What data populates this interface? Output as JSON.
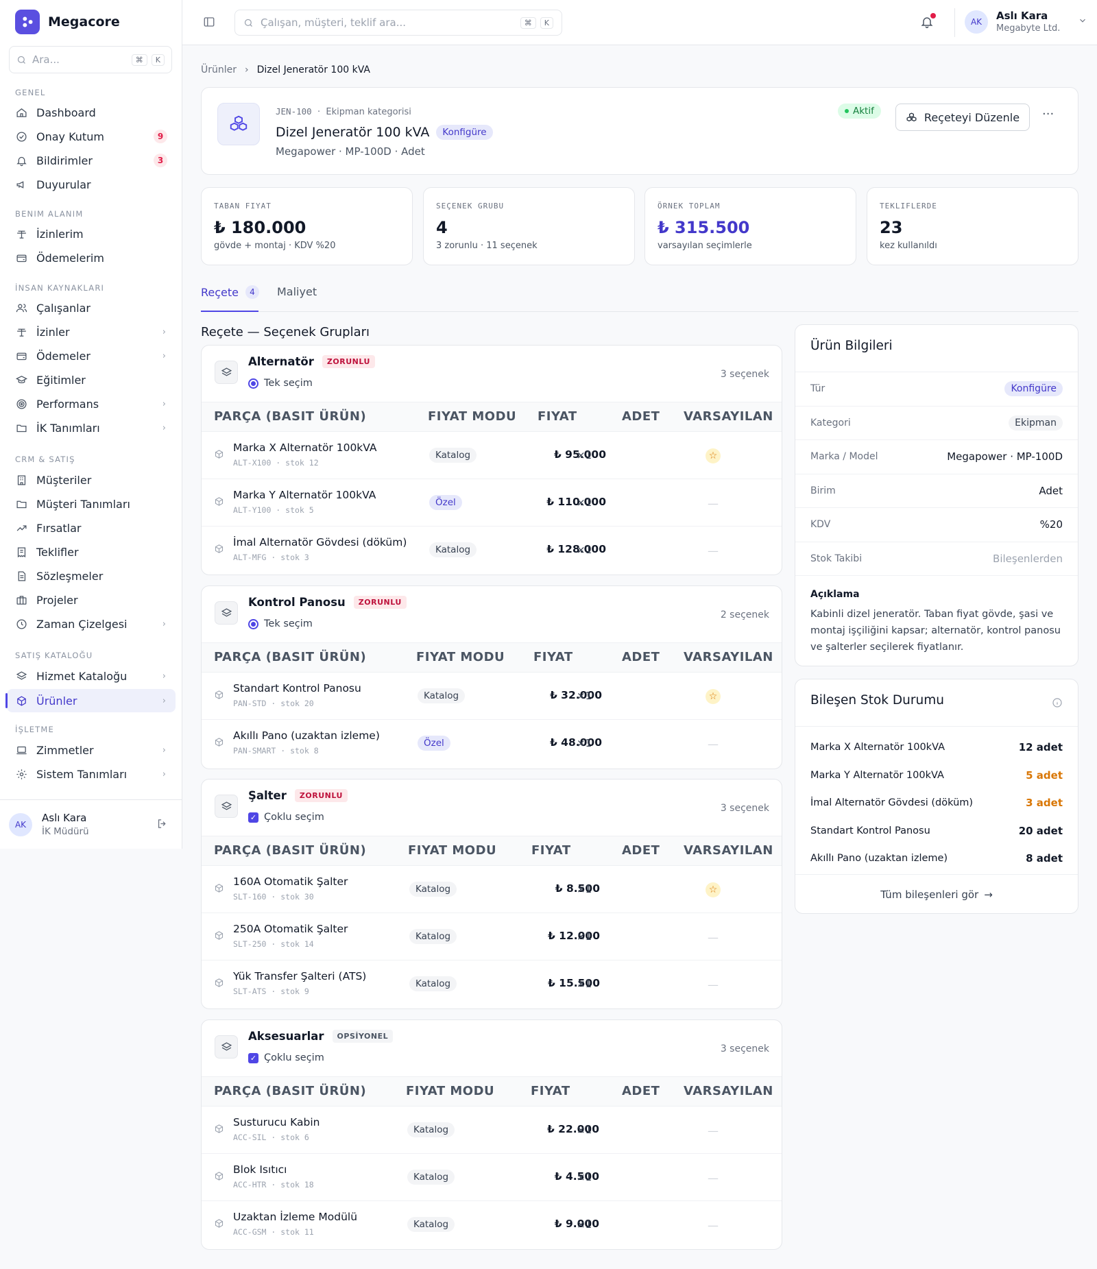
{
  "brand": {
    "name": "Megacore"
  },
  "sidebar": {
    "search_placeholder": "Ara...",
    "kbd1": "⌘",
    "kbd2": "K",
    "sections": {
      "genel": "GENEL",
      "benim": "BENIM ALANIM",
      "ik": "İNSAN KAYNAKLARI",
      "crm": "CRM & SATIŞ",
      "katalog": "SATIŞ KATALOĞU",
      "isletme": "İŞLETME"
    },
    "items": {
      "dashboard": "Dashboard",
      "onay": "Onay Kutum",
      "onay_badge": "9",
      "bildirim": "Bildirimler",
      "bildirim_badge": "3",
      "duyuru": "Duyurular",
      "izinlerim": "İzinlerim",
      "odemelerim": "Ödemelerim",
      "calisanlar": "Çalışanlar",
      "izinler": "İzinler",
      "odemeler": "Ödemeler",
      "egitimler": "Eğitimler",
      "performans": "Performans",
      "ik_tanim": "İK Tanımları",
      "musteriler": "Müşteriler",
      "musteri_tanim": "Müşteri Tanımları",
      "firsatlar": "Fırsatlar",
      "teklifler": "Teklifler",
      "sozlesmeler": "Sözleşmeler",
      "projeler": "Projeler",
      "zaman": "Zaman Çizelgesi",
      "hizmet": "Hizmet Kataloğu",
      "urunler": "Ürünler",
      "zimmetler": "Zimmetler",
      "sistem": "Sistem Tanımları"
    },
    "user": {
      "initials": "AK",
      "name": "Aslı Kara",
      "role": "İK Müdürü"
    }
  },
  "topbar": {
    "search_placeholder": "Çalışan, müşteri, teklif ara...",
    "kbd1": "⌘",
    "kbd2": "K",
    "user": {
      "initials": "AK",
      "name": "Aslı Kara",
      "company": "Megabyte Ltd."
    }
  },
  "breadcrumb": {
    "parent": "Ürünler",
    "sep": "›",
    "current": "Dizel Jeneratör 100 kVA"
  },
  "product": {
    "code": "JEN-100",
    "meta_sep": "·",
    "category_label": "Ekipman kategorisi",
    "title": "Dizel Jeneratör 100 kVA",
    "type_pill": "Konfigüre",
    "subtitle": "Megapower · MP-100D · Adet",
    "status": "Aktif",
    "edit_button": "Reçeteyi Düzenle",
    "more": "···"
  },
  "stats": [
    {
      "label": "TABAN FIYAT",
      "value": "₺ 180.000",
      "note": "gövde + montaj · KDV %20"
    },
    {
      "label": "SEÇENEK GRUBU",
      "value": "4",
      "note": "3 zorunlu · 11 seçenek"
    },
    {
      "label": "ÖRNEK TOPLAM",
      "value": "₺ 315.500",
      "note": "varsayılan seçimlerle"
    },
    {
      "label": "TEKLIFLERDE",
      "value": "23",
      "note": "kez kullanıldı"
    }
  ],
  "tabs": {
    "recete": "Reçete",
    "recete_count": "4",
    "maliyet": "Maliyet"
  },
  "section_title": "Reçete — Seçenek Grupları",
  "table_headers": {
    "part": "PARÇA (BASIT ÜRÜN)",
    "mode": "FIYAT MODU",
    "price": "FIYAT",
    "qty": "ADET",
    "default": "VARSAYILAN"
  },
  "groups": [
    {
      "name": "Alternatör",
      "tag": "ZORUNLU",
      "selection": "Tek seçim",
      "count": "3 seçenek",
      "rows": [
        {
          "name": "Marka X Alternatör 100kVA",
          "code": "ALT-X100 · stok 12",
          "mode": "Katalog",
          "price": "₺ 95.000",
          "qty": "×1",
          "default": "☆"
        },
        {
          "name": "Marka Y Alternatör 100kVA",
          "code": "ALT-Y100 · stok 5",
          "mode": "Özel",
          "price": "₺ 110.000",
          "qty": "×1",
          "default": "—"
        },
        {
          "name": "İmal Alternatör Gövdesi (döküm)",
          "code": "ALT-MFG · stok 3",
          "mode": "Katalog",
          "price": "₺ 128.000",
          "qty": "×1",
          "default": "—"
        }
      ]
    },
    {
      "name": "Kontrol Panosu",
      "tag": "ZORUNLU",
      "selection": "Tek seçim",
      "count": "2 seçenek",
      "rows": [
        {
          "name": "Standart Kontrol Panosu",
          "code": "PAN-STD · stok 20",
          "mode": "Katalog",
          "price": "₺ 32.000",
          "qty": "×1",
          "default": "☆"
        },
        {
          "name": "Akıllı Pano (uzaktan izleme)",
          "code": "PAN-SMART · stok 8",
          "mode": "Özel",
          "price": "₺ 48.000",
          "qty": "×1",
          "default": "—"
        }
      ]
    },
    {
      "name": "Şalter",
      "tag": "ZORUNLU",
      "selection": "Çoklu seçim",
      "count": "3 seçenek",
      "rows": [
        {
          "name": "160A Otomatik Şalter",
          "code": "SLT-160 · stok 30",
          "mode": "Katalog",
          "price": "₺ 8.500",
          "qty": "×1",
          "default": "☆"
        },
        {
          "name": "250A Otomatik Şalter",
          "code": "SLT-250 · stok 14",
          "mode": "Katalog",
          "price": "₺ 12.000",
          "qty": "×1",
          "default": "—"
        },
        {
          "name": "Yük Transfer Şalteri (ATS)",
          "code": "SLT-ATS · stok 9",
          "mode": "Katalog",
          "price": "₺ 15.500",
          "qty": "×1",
          "default": "—"
        }
      ]
    },
    {
      "name": "Aksesuarlar",
      "tag": "OPSİYONEL",
      "selection": "Çoklu seçim",
      "count": "3 seçenek",
      "rows": [
        {
          "name": "Susturucu Kabin",
          "code": "ACC-SIL · stok 6",
          "mode": "Katalog",
          "price": "₺ 22.000",
          "qty": "×1",
          "default": "—"
        },
        {
          "name": "Blok Isıtıcı",
          "code": "ACC-HTR · stok 18",
          "mode": "Katalog",
          "price": "₺ 4.500",
          "qty": "×1",
          "default": "—"
        },
        {
          "name": "Uzaktan İzleme Modülü",
          "code": "ACC-GSM · stok 11",
          "mode": "Katalog",
          "price": "₺ 9.000",
          "qty": "×1",
          "default": "—"
        }
      ]
    }
  ],
  "info": {
    "title": "Ürün Bilgileri",
    "rows": [
      {
        "k": "Tür",
        "v": "Konfigüre"
      },
      {
        "k": "Kategori",
        "v": "Ekipman"
      },
      {
        "k": "Marka / Model",
        "v": "Megapower · MP-100D"
      },
      {
        "k": "Birim",
        "v": "Adet"
      },
      {
        "k": "KDV",
        "v": "%20"
      },
      {
        "k": "Stok Takibi",
        "v": "Bileşenlerden"
      }
    ],
    "desc_label": "Açıklama",
    "desc": "Kabinli dizel jeneratör. Taban fiyat gövde, şasi ve montaj işçiliğini kapsar; alternatör, kontrol panosu ve şalterler seçilerek fiyatlanır."
  },
  "stock": {
    "title": "Bileşen Stok Durumu",
    "rows": [
      {
        "name": "Marka X Alternatör 100kVA",
        "amount": "12 adet"
      },
      {
        "name": "Marka Y Alternatör 100kVA",
        "amount": "5 adet"
      },
      {
        "name": "İmal Alternatör Gövdesi (döküm)",
        "amount": "3 adet"
      },
      {
        "name": "Standart Kontrol Panosu",
        "amount": "20 adet"
      },
      {
        "name": "Akıllı Pano (uzaktan izleme)",
        "amount": "8 adet"
      }
    ],
    "footer": "Tüm bileşenleri gör",
    "footer_arrow": "→"
  }
}
